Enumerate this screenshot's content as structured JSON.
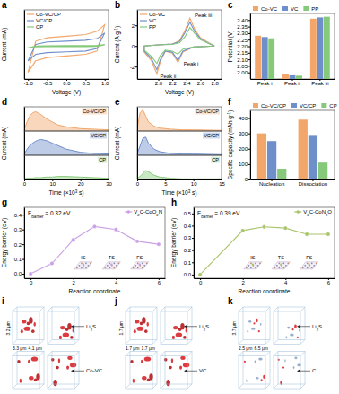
{
  "chart_data": [
    {
      "title": "a",
      "type": "line",
      "x_label": "Voltage (V)",
      "y_label": "Current (mA)",
      "x": [
        -1,
        -0.8,
        -0.5,
        0,
        0.5,
        0.8,
        1,
        0.8,
        0.5,
        0,
        -0.5,
        -0.8,
        -1
      ],
      "series": [
        {
          "name": "Co-VC/CP",
          "color": "#f2a66a",
          "values": [
            -1.6,
            0.3,
            0.5,
            0.6,
            0.7,
            0.9,
            1.3,
            -0.3,
            -0.5,
            -0.6,
            -0.7,
            -0.9,
            -1.6
          ]
        },
        {
          "name": "VC/CP",
          "color": "#6f8fca",
          "values": [
            -0.9,
            0.1,
            0.25,
            0.3,
            0.35,
            0.45,
            0.8,
            -0.15,
            -0.3,
            -0.35,
            -0.4,
            -0.5,
            -0.9
          ]
        },
        {
          "name": "CP",
          "color": "#86c97a",
          "values": [
            -0.1,
            0,
            0.02,
            0.03,
            0.03,
            0.04,
            0.08,
            -0.02,
            -0.03,
            -0.03,
            -0.04,
            -0.05,
            -0.1
          ]
        }
      ],
      "xlim": [
        -1.1,
        1.1
      ],
      "ylim": [
        -2,
        2.2
      ],
      "xticks": [
        {
          "value": -1,
          "label": "-1.0"
        },
        {
          "value": -0.5,
          "label": "-0.5"
        },
        {
          "value": 0,
          "label": "0.0"
        },
        {
          "value": 0.5,
          "label": "0.5"
        },
        {
          "value": 1,
          "label": "1.0"
        }
      ],
      "tick_labels": "x",
      "legend": "upper left"
    },
    {
      "title": "b",
      "type": "line",
      "x_label": "Voltage (V)",
      "y_label": [
        "Current (A g",
        {
          "sup": "-1"
        },
        ")"
      ],
      "x": [
        2.8,
        2.5,
        2.35,
        2.28,
        2.2,
        2.1,
        2.03,
        1.98,
        1.9,
        1.8,
        1.8,
        2.0,
        2.2,
        2.3,
        2.38,
        2.45,
        2.52,
        2.6,
        2.7,
        2.8
      ],
      "series": [
        {
          "name": "Co-VC",
          "color": "#f2a66a",
          "values": [
            0,
            -0.1,
            -0.6,
            -1.6,
            -0.7,
            -0.5,
            -1.5,
            -2.7,
            -1.4,
            -0.6,
            0,
            0.1,
            0.2,
            0.5,
            1.5,
            2.7,
            1.6,
            0.8,
            0.4,
            0
          ]
        },
        {
          "name": "VC",
          "color": "#6f8fca",
          "values": [
            0,
            -0.1,
            -0.5,
            -1.4,
            -0.6,
            -0.5,
            -1.3,
            -2.3,
            -1.2,
            -0.5,
            0,
            0.1,
            0.2,
            0.4,
            1.3,
            2.3,
            1.4,
            0.7,
            0.3,
            0
          ]
        },
        {
          "name": "PP",
          "color": "#86c97a",
          "values": [
            0,
            -0.1,
            -0.3,
            -0.8,
            -0.5,
            -0.4,
            -0.9,
            -1.7,
            -1.0,
            -0.4,
            0,
            0.1,
            0.15,
            0.3,
            0.9,
            1.8,
            1.2,
            0.6,
            0.3,
            0
          ]
        }
      ],
      "xlim": [
        1.7,
        2.9
      ],
      "ylim": [
        -3.2,
        3.5
      ],
      "xticks": [
        {
          "value": 2,
          "label": "2.0"
        },
        {
          "value": 2.2,
          "label": "2.2"
        },
        {
          "value": 2.4,
          "label": "2.4"
        },
        {
          "value": 2.6,
          "label": "2.6"
        },
        {
          "value": 2.8,
          "label": "2.8"
        }
      ],
      "yticks": [
        -2,
        0,
        2
      ],
      "annotations": [
        "Peak i",
        "Peak ii",
        "Peak iii"
      ],
      "legend": "upper left"
    },
    {
      "title": "c",
      "type": "bar",
      "y_label": "Potential (V)",
      "categories": [
        "Peak i",
        "Peak ii",
        "Peak iii"
      ],
      "series": [
        {
          "name": "Co-VC",
          "color": "#f2a66a",
          "values": [
            2.28,
            1.985,
            2.41
          ]
        },
        {
          "name": "VC",
          "color": "#6f8fca",
          "values": [
            2.27,
            1.978,
            2.42
          ]
        },
        {
          "name": "PP",
          "color": "#86c97a",
          "values": [
            2.26,
            1.975,
            2.425
          ]
        }
      ],
      "ylim": [
        1.95,
        2.45
      ],
      "yticks": [
        {
          "value": 2,
          "label": "2.00"
        },
        2.05,
        {
          "value": 2.1,
          "label": "2.10"
        },
        2.15,
        {
          "value": 2.2,
          "label": "2.20"
        },
        2.25,
        {
          "value": 2.3,
          "label": "2.30"
        },
        2.35,
        {
          "value": 2.4,
          "label": "2.40"
        }
      ],
      "legend": "top"
    },
    {
      "title": "d",
      "type": "area",
      "x_label": [
        "Time (×10",
        {
          "sup": "3"
        },
        " s)"
      ],
      "y_label": "Current (mA)",
      "x": [
        0,
        1,
        2,
        3,
        4,
        5,
        6,
        8,
        10,
        12,
        15,
        20,
        25,
        30
      ],
      "series": [
        {
          "name": "Co-VC/CP",
          "color": "#f2a66a",
          "values": [
            0.02,
            0.15,
            0.25,
            0.3,
            0.32,
            0.3,
            0.27,
            0.2,
            0.15,
            0.1,
            0.07,
            0.04,
            0.03,
            0.02
          ]
        },
        {
          "name": "VC/CP",
          "color": "#6f8fca",
          "values": [
            0.02,
            0.1,
            0.16,
            0.2,
            0.23,
            0.25,
            0.26,
            0.24,
            0.2,
            0.16,
            0.1,
            0.05,
            0.03,
            0.02
          ]
        },
        {
          "name": "CP",
          "color": "#86c97a",
          "values": [
            0.01,
            0.02,
            0.02,
            0.02,
            0.03,
            0.03,
            0.03,
            0.04,
            0.04,
            0.05,
            0.05,
            0.04,
            0.03,
            0.02
          ]
        }
      ],
      "xlim": [
        0,
        30
      ],
      "xticks": [
        0,
        10,
        20,
        30
      ],
      "ylim": [
        0,
        0.4
      ],
      "tick_labels": "x"
    },
    {
      "title": "e",
      "type": "area",
      "x_label": [
        "Time (×10",
        {
          "sup": "3"
        },
        " s)"
      ],
      "y_label": "Current (mA)",
      "x": [
        0,
        0.5,
        1,
        1.5,
        2,
        3,
        4,
        6,
        8,
        10,
        15
      ],
      "series": [
        {
          "name": "Co-VC/CP",
          "color": "#f2a66a",
          "values": [
            0.05,
            0.3,
            0.35,
            0.25,
            0.15,
            0.08,
            0.05,
            0.03,
            0.02,
            0.02,
            0.01
          ]
        },
        {
          "name": "VC/CP",
          "color": "#6f8fca",
          "values": [
            0.03,
            0.15,
            0.28,
            0.3,
            0.2,
            0.1,
            0.06,
            0.03,
            0.02,
            0.02,
            0.01
          ]
        },
        {
          "name": "CP",
          "color": "#86c97a",
          "values": [
            0.02,
            0.05,
            0.1,
            0.15,
            0.13,
            0.07,
            0.04,
            0.02,
            0.01,
            0.01,
            0.01
          ]
        }
      ],
      "xlim": [
        0,
        15
      ],
      "xticks": [
        0,
        5,
        10,
        15
      ],
      "ylim": [
        0,
        0.4
      ],
      "tick_labels": "x"
    },
    {
      "title": "f",
      "type": "bar",
      "y_label": [
        "Specific capacity (mAh g",
        {
          "sup": "-1"
        },
        ")"
      ],
      "categories": [
        "Nucleation",
        "Dissociation"
      ],
      "series": [
        {
          "name": "Co-VC/CP",
          "color": "#f2a66a",
          "values": [
            300,
            390
          ]
        },
        {
          "name": "VC/CP",
          "color": "#6f8fca",
          "values": [
            250,
            290
          ]
        },
        {
          "name": "CP",
          "color": "#86c97a",
          "values": [
            70,
            110
          ]
        }
      ],
      "ylim": [
        0,
        450
      ],
      "yticks": [
        0,
        100,
        200,
        300,
        400
      ],
      "legend": "top"
    },
    {
      "title": "g",
      "type": "line",
      "marker": "circle",
      "x_label": "Reaction coordinate",
      "y_label": "Energy barrier (eV)",
      "x": [
        0,
        1,
        2,
        3,
        4,
        5,
        6
      ],
      "series": [
        {
          "name": [
            "V",
            {
              "sub": "2"
            },
            "C-CoO",
            {
              "sub": "2"
            },
            "N"
          ],
          "color": "#c9a0e6",
          "values": [
            0,
            0.07,
            0.23,
            0.32,
            0.3,
            0.22,
            0.2
          ]
        }
      ],
      "xlim": [
        -0.3,
        6.3
      ],
      "xticks": [
        0,
        2,
        4,
        6
      ],
      "ylim": [
        -0.03,
        0.45
      ],
      "yticks": [
        {
          "value": 0,
          "label": "0.0"
        },
        0.1,
        0.2,
        0.3,
        0.4
      ],
      "annotation": [
        "E",
        {
          "sub": "barrier"
        },
        " = 0.32 eV"
      ],
      "state_labels": [
        "IS",
        "TS",
        "FS"
      ],
      "legend": "upper right"
    },
    {
      "title": "h",
      "type": "line",
      "marker": "circle",
      "x_label": "Reaction coordinate",
      "y_label": "Energy barrier (eV)",
      "x": [
        0,
        2,
        3,
        4,
        5,
        6
      ],
      "series": [
        {
          "name": [
            "V",
            {
              "sub": "2"
            },
            "C-CoN",
            {
              "sub": "2"
            },
            "O"
          ],
          "color": "#a9c46a",
          "values": [
            0,
            0.36,
            0.39,
            0.38,
            0.33,
            0.33
          ]
        }
      ],
      "xlim": [
        -0.3,
        6.3
      ],
      "xticks": [
        0,
        2,
        4,
        6
      ],
      "ylim": [
        -0.03,
        0.55
      ],
      "yticks": [
        {
          "value": 0,
          "label": "0.0"
        },
        0.1,
        0.2,
        0.3,
        0.4,
        0.5
      ],
      "annotation": [
        "E",
        {
          "sub": "barrier"
        },
        " = 0.39 eV"
      ],
      "state_labels": [
        "IS",
        "TS",
        "FS"
      ],
      "legend": "upper right"
    }
  ],
  "tomography": [
    {
      "title": "i",
      "dims": [
        "3.2 μm",
        "3.3 μm",
        "4.1 μm"
      ],
      "labels": [
        [
          "Li",
          {
            "sub": "2"
          },
          "S"
        ],
        "Co-VC"
      ],
      "colors": [
        "#d8262a",
        "#b51a1e"
      ]
    },
    {
      "title": "j",
      "dims": [
        "1.7 μm",
        "1.7 μm",
        "1.7 μm"
      ],
      "labels": [
        [
          "Li",
          {
            "sub": "2"
          },
          "S"
        ],
        "VC"
      ],
      "colors": [
        "#d8262a",
        "#b51a1e"
      ]
    },
    {
      "title": "k",
      "dims": [
        "3.7 μm",
        "2.5 μm",
        "6.5 μm"
      ],
      "labels": [
        [
          "Li",
          {
            "sub": "2"
          },
          "S"
        ],
        "C"
      ],
      "colors": [
        "#8da6c6",
        "#d8262a"
      ]
    }
  ]
}
